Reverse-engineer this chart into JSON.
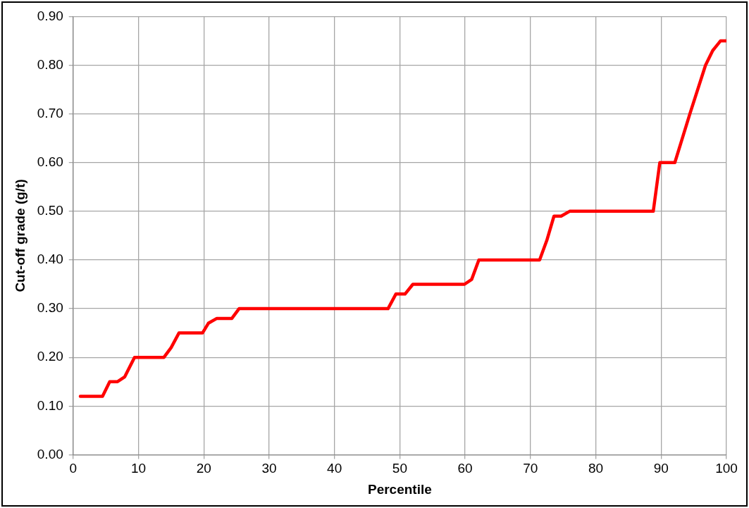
{
  "chart_data": {
    "type": "line",
    "xlabel": "Percentile",
    "ylabel": "Cut-off grade (g/t)",
    "x": [
      1.1,
      4.5,
      5.6,
      6.8,
      7.9,
      9.4,
      13.9,
      15.0,
      16.2,
      19.8,
      20.7,
      22.0,
      24.3,
      25.4,
      48.2,
      49.4,
      50.8,
      52.0,
      59.9,
      61.0,
      62.1,
      71.4,
      72.5,
      73.6,
      74.7,
      76.0,
      88.8,
      89.8,
      92.1,
      94.4,
      96.8,
      97.9,
      99.1,
      100
    ],
    "series": [
      {
        "color": "#ff0000",
        "values": [
          0.12,
          0.12,
          0.15,
          0.15,
          0.16,
          0.2,
          0.2,
          0.22,
          0.25,
          0.25,
          0.27,
          0.28,
          0.28,
          0.3,
          0.3,
          0.33,
          0.33,
          0.35,
          0.35,
          0.36,
          0.4,
          0.4,
          0.44,
          0.49,
          0.49,
          0.5,
          0.5,
          0.6,
          0.6,
          0.7,
          0.8,
          0.83,
          0.85,
          0.85
        ]
      }
    ],
    "xlim": [
      0,
      100
    ],
    "xticks": [
      0,
      10,
      20,
      30,
      40,
      50,
      60,
      70,
      80,
      90,
      100
    ],
    "ylim": [
      0,
      0.9
    ],
    "yticks": [
      {
        "value": 0,
        "label": "0.00"
      },
      {
        "value": 0.1,
        "label": "0.10"
      },
      {
        "value": 0.2,
        "label": "0.20"
      },
      {
        "value": 0.3,
        "label": "0.30"
      },
      {
        "value": 0.4,
        "label": "0.40"
      },
      {
        "value": 0.5,
        "label": "0.50"
      },
      {
        "value": 0.6,
        "label": "0.60"
      },
      {
        "value": 0.7,
        "label": "0.70"
      },
      {
        "value": 0.8,
        "label": "0.80"
      },
      {
        "value": 0.9,
        "label": "0.90"
      }
    ],
    "grid": true,
    "legend": false,
    "marker": "none",
    "line_style": "solid"
  }
}
